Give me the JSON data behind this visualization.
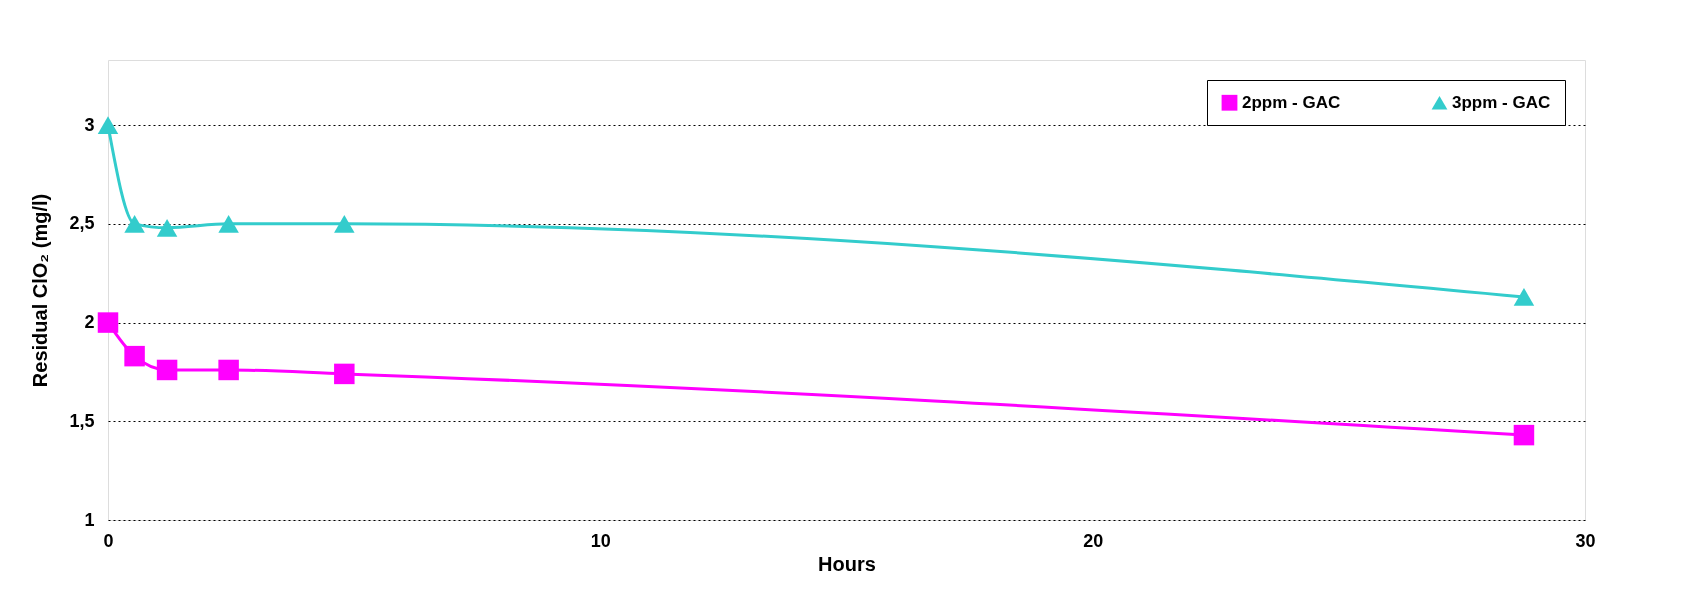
{
  "chart_data": {
    "type": "line",
    "xlabel": "Hours",
    "ylabel": "Residual ClO₂ (mg/l)",
    "xlim": [
      0,
      30
    ],
    "xticks": [
      0,
      10,
      20,
      30
    ],
    "ylim": [
      1,
      3.33
    ],
    "yticks": [
      1,
      {
        "value": 1.5,
        "label": "1,5"
      },
      2,
      {
        "value": 2.5,
        "label": "2,5"
      },
      3
    ],
    "grid": "y",
    "legend": "top right",
    "line_style": "solid",
    "series": [
      {
        "name": "2ppm - GAC",
        "color": "#ff00ff",
        "marker": "square",
        "x": [
          0,
          0.54,
          1.2,
          2.45,
          4.8,
          28.76
        ],
        "values": [
          2.0,
          1.83,
          1.76,
          1.76,
          1.74,
          1.43
        ]
      },
      {
        "name": "3ppm - GAC",
        "color": "#33cccc",
        "marker": "triangle",
        "x": [
          0,
          0.54,
          1.2,
          2.45,
          4.8,
          28.76
        ],
        "values": [
          3.0,
          2.5,
          2.48,
          2.5,
          2.5,
          2.13
        ]
      }
    ]
  }
}
